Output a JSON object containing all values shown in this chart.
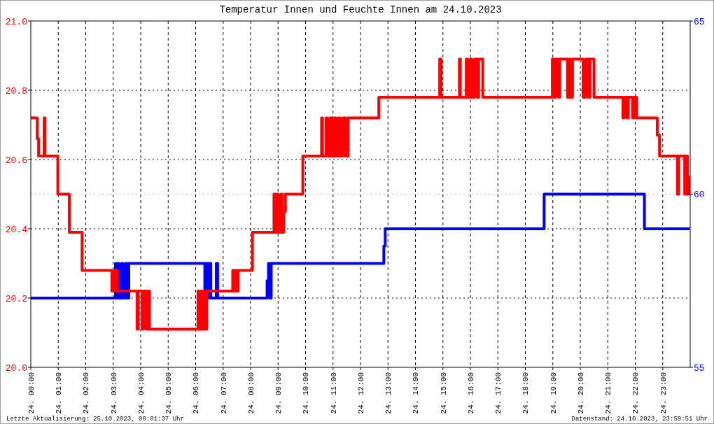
{
  "chart_data": {
    "type": "step",
    "title": "Temperatur Innen und Feuchte Innen am 24.10.2023",
    "annotations": [
      "Letzte Aktualisierung: 25.10.2023, 00:01:37 Uhr",
      "Datenstand: 24.10.2023, 23:59:51 Uhr"
    ],
    "xlim": [
      "2023-10-24T00:00",
      "2023-10-25T00:00"
    ],
    "xticks": [
      {
        "value": "2023-10-24T00:00",
        "label": "24. 00:00"
      },
      {
        "value": "2023-10-24T01:00",
        "label": "24. 01:00"
      },
      {
        "value": "2023-10-24T02:00",
        "label": "24. 02:00"
      },
      {
        "value": "2023-10-24T03:00",
        "label": "24. 03:00"
      },
      {
        "value": "2023-10-24T04:00",
        "label": "24. 04:00"
      },
      {
        "value": "2023-10-24T05:00",
        "label": "24. 05:00"
      },
      {
        "value": "2023-10-24T06:00",
        "label": "24. 06:00"
      },
      {
        "value": "2023-10-24T07:00",
        "label": "24. 07:00"
      },
      {
        "value": "2023-10-24T08:00",
        "label": "24. 08:00"
      },
      {
        "value": "2023-10-24T09:00",
        "label": "24. 09:00"
      },
      {
        "value": "2023-10-24T10:00",
        "label": "24. 10:00"
      },
      {
        "value": "2023-10-24T11:00",
        "label": "24. 11:00"
      },
      {
        "value": "2023-10-24T12:00",
        "label": "24. 12:00"
      },
      {
        "value": "2023-10-24T13:00",
        "label": "24. 13:00"
      },
      {
        "value": "2023-10-24T14:00",
        "label": "24. 14:00"
      },
      {
        "value": "2023-10-24T15:00",
        "label": "24. 15:00"
      },
      {
        "value": "2023-10-24T16:00",
        "label": "24. 16:00"
      },
      {
        "value": "2023-10-24T17:00",
        "label": "24. 17:00"
      },
      {
        "value": "2023-10-24T18:00",
        "label": "24. 18:00"
      },
      {
        "value": "2023-10-24T19:00",
        "label": "24. 19:00"
      },
      {
        "value": "2023-10-24T20:00",
        "label": "24. 20:00"
      },
      {
        "value": "2023-10-24T21:00",
        "label": "24. 21:00"
      },
      {
        "value": "2023-10-24T22:00",
        "label": "24. 22:00"
      },
      {
        "value": "2023-10-24T23:00",
        "label": "24. 23:00"
      }
    ],
    "ylim": [
      20,
      21
    ],
    "yticks": [
      {
        "value": 20,
        "label": "20.0"
      },
      20.2,
      20.4,
      20.6,
      20.8,
      {
        "value": 21,
        "label": "21.0"
      }
    ],
    "y2lim": [
      55,
      65
    ],
    "y2ticks": [
      55,
      60,
      65
    ],
    "grid": true,
    "ref_lines": [
      {
        "axis": "y2",
        "value": 60,
        "color": "#c0c0c0",
        "line_style": "dotted"
      }
    ],
    "series": [
      {
        "color": "#ff0000",
        "axis": "y",
        "x": [
          "2023-10-24T00:00",
          "2023-10-24T00:14",
          "2023-10-24T00:17",
          "2023-10-24T00:29",
          "2023-10-24T00:31",
          "2023-10-24T00:59",
          "2023-10-24T01:24",
          "2023-10-24T01:52",
          "2023-10-24T02:57",
          "2023-10-24T03:00",
          "2023-10-24T03:03",
          "2023-10-24T03:06",
          "2023-10-24T03:09",
          "2023-10-24T03:13",
          "2023-10-24T03:52",
          "2023-10-24T03:55",
          "2023-10-24T04:03",
          "2023-10-24T04:06",
          "2023-10-24T04:12",
          "2023-10-24T04:17",
          "2023-10-24T04:19",
          "2023-10-24T06:05",
          "2023-10-24T06:07",
          "2023-10-24T06:12",
          "2023-10-24T06:15",
          "2023-10-24T06:20",
          "2023-10-24T06:22",
          "2023-10-24T06:24",
          "2023-10-24T07:21",
          "2023-10-24T07:24",
          "2023-10-24T07:27",
          "2023-10-24T07:30",
          "2023-10-24T07:33",
          "2023-10-24T08:04",
          "2023-10-24T08:51",
          "2023-10-24T08:54",
          "2023-10-24T08:57",
          "2023-10-24T09:00",
          "2023-10-24T09:06",
          "2023-10-24T09:09",
          "2023-10-24T09:12",
          "2023-10-24T09:16",
          "2023-10-24T09:54",
          "2023-10-24T10:35",
          "2023-10-24T10:37",
          "2023-10-24T10:45",
          "2023-10-24T10:48",
          "2023-10-24T10:54",
          "2023-10-24T10:57",
          "2023-10-24T11:03",
          "2023-10-24T11:06",
          "2023-10-24T11:12",
          "2023-10-24T11:15",
          "2023-10-24T11:21",
          "2023-10-24T11:27",
          "2023-10-24T11:33",
          "2023-10-24T12:40",
          "2023-10-24T14:53",
          "2023-10-24T14:56",
          "2023-10-24T15:36",
          "2023-10-24T15:38",
          "2023-10-24T15:51",
          "2023-10-24T15:54",
          "2023-10-24T16:00",
          "2023-10-24T16:03",
          "2023-10-24T16:09",
          "2023-10-24T16:15",
          "2023-10-24T16:18",
          "2023-10-24T16:27",
          "2023-10-24T18:59",
          "2023-10-24T19:03",
          "2023-10-24T19:06",
          "2023-10-24T19:12",
          "2023-10-24T19:15",
          "2023-10-24T19:32",
          "2023-10-24T19:35",
          "2023-10-24T19:39",
          "2023-10-24T19:43",
          "2023-10-24T20:06",
          "2023-10-24T20:12",
          "2023-10-24T20:18",
          "2023-10-24T20:21",
          "2023-10-24T20:30",
          "2023-10-24T21:33",
          "2023-10-24T21:36",
          "2023-10-24T21:42",
          "2023-10-24T21:45",
          "2023-10-24T21:54",
          "2023-10-24T21:57",
          "2023-10-24T22:03",
          "2023-10-24T22:48",
          "2023-10-24T22:53",
          "2023-10-24T23:32",
          "2023-10-24T23:35",
          "2023-10-24T23:48",
          "2023-10-24T23:51",
          "2023-10-24T23:54",
          "2023-10-24T23:57",
          "2023-10-24T23:59"
        ],
        "values": [
          20.72,
          20.66,
          20.61,
          20.72,
          20.61,
          20.5,
          20.39,
          20.28,
          20.22,
          20.28,
          20.22,
          20.28,
          20.22,
          20.22,
          20.11,
          20.22,
          20.11,
          20.22,
          20.11,
          20.22,
          20.11,
          20.22,
          20.11,
          20.22,
          20.11,
          20.22,
          20.11,
          20.22,
          20.28,
          20.22,
          20.28,
          20.22,
          20.28,
          20.39,
          20.5,
          20.39,
          20.5,
          20.39,
          20.5,
          20.39,
          20.45,
          20.5,
          20.61,
          20.72,
          20.61,
          20.72,
          20.61,
          20.72,
          20.61,
          20.72,
          20.61,
          20.72,
          20.61,
          20.72,
          20.61,
          20.72,
          20.78,
          20.89,
          20.78,
          20.89,
          20.78,
          20.89,
          20.78,
          20.89,
          20.78,
          20.89,
          20.78,
          20.89,
          20.78,
          20.89,
          20.78,
          20.89,
          20.78,
          20.89,
          20.78,
          20.89,
          20.78,
          20.89,
          20.78,
          20.89,
          20.78,
          20.89,
          20.78,
          20.72,
          20.78,
          20.72,
          20.78,
          20.72,
          20.78,
          20.72,
          20.67,
          20.61,
          20.5,
          20.61,
          20.5,
          20.61,
          20.5,
          20.55,
          20.55
        ]
      },
      {
        "color": "#0000ff",
        "axis": "y2",
        "x": [
          "2023-10-24T00:00",
          "2023-10-24T03:05",
          "2023-10-24T03:06",
          "2023-10-24T03:09",
          "2023-10-24T03:12",
          "2023-10-24T03:18",
          "2023-10-24T03:21",
          "2023-10-24T03:27",
          "2023-10-24T03:30",
          "2023-10-24T03:34",
          "2023-10-24T06:20",
          "2023-10-24T06:23",
          "2023-10-24T06:27",
          "2023-10-24T06:30",
          "2023-10-24T06:33",
          "2023-10-24T06:45",
          "2023-10-24T06:48",
          "2023-10-24T08:36",
          "2023-10-24T08:39",
          "2023-10-24T08:42",
          "2023-10-24T08:45",
          "2023-10-24T12:51",
          "2023-10-24T12:54",
          "2023-10-24T18:41",
          "2023-10-24T22:20",
          "2023-10-24T23:59"
        ],
        "values": [
          57,
          58,
          57,
          58,
          57,
          58,
          57,
          58,
          57,
          58,
          57,
          58,
          57,
          58,
          57,
          58,
          57,
          57.5,
          58,
          57,
          58,
          58.5,
          59,
          60,
          59,
          59
        ]
      }
    ]
  }
}
